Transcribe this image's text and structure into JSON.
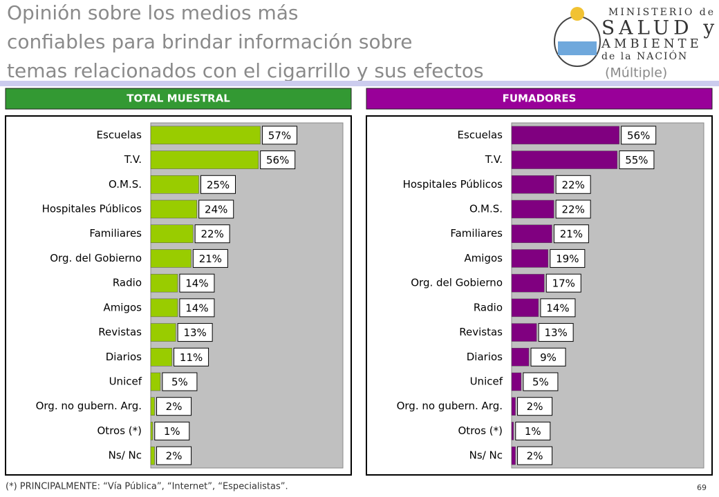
{
  "title_lines": [
    "Opinión sobre los medios más",
    "confiables para brindar información sobre",
    "temas relacionados con el cigarrillo y sus efectos"
  ],
  "title_note": "(Múltiple)",
  "logo": [
    "MINISTERIO de",
    "SALUD y",
    "AMBIENTE",
    "de la NACIÓN"
  ],
  "chart_data": [
    {
      "type": "bar",
      "orientation": "horizontal",
      "title": "TOTAL MUESTRAL",
      "header_color": "#339933",
      "color": "#99cc00",
      "categories": [
        "Escuelas",
        "T.V.",
        "O.M.S.",
        "Hospitales Públicos",
        "Familiares",
        "Org. del Gobierno",
        "Radio",
        "Amigos",
        "Revistas",
        "Diarios",
        "Unicef",
        "Org. no gubern. Arg.",
        "Otros (*)",
        "Ns/ Nc"
      ],
      "values": [
        57,
        56,
        25,
        24,
        22,
        21,
        14,
        14,
        13,
        11,
        5,
        2,
        1,
        2
      ],
      "value_labels": [
        "57%",
        "56%",
        "25%",
        "24%",
        "22%",
        "21%",
        "14%",
        "14%",
        "13%",
        "11%",
        "5%",
        "2%",
        "1%",
        "2%"
      ],
      "xlim": [
        0,
        100
      ]
    },
    {
      "type": "bar",
      "orientation": "horizontal",
      "title": "FUMADORES",
      "header_color": "#990099",
      "color": "#800080",
      "categories": [
        "Escuelas",
        "T.V.",
        "Hospitales Públicos",
        "O.M.S.",
        "Familiares",
        "Amigos",
        "Org. del Gobierno",
        "Radio",
        "Revistas",
        "Diarios",
        "Unicef",
        "Org. no gubern. Arg.",
        "Otros (*)",
        "Ns/ Nc"
      ],
      "values": [
        56,
        55,
        22,
        22,
        21,
        19,
        17,
        14,
        13,
        9,
        5,
        2,
        1,
        2
      ],
      "value_labels": [
        "56%",
        "55%",
        "22%",
        "22%",
        "21%",
        "19%",
        "17%",
        "14%",
        "13%",
        "9%",
        "5%",
        "2%",
        "1%",
        "2%"
      ],
      "xlim": [
        0,
        100
      ]
    }
  ],
  "footnote": "(*) PRINCIPALMENTE: “Vía Pública”, “Internet”, “Especialistas”.",
  "page_number": "69"
}
